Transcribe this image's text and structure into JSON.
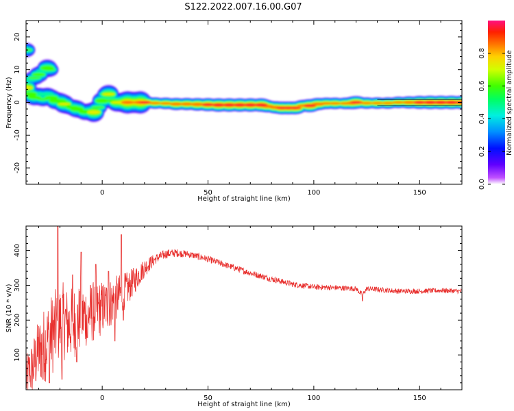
{
  "title": "S122.2022.007.16.00.G07",
  "chart_data": [
    {
      "type": "heatmap",
      "xlabel": "Height of straight line (km)",
      "ylabel": "Frequency (Hz)",
      "xlim": [
        -36,
        170
      ],
      "ylim": [
        -25,
        25
      ],
      "x_ticks": [
        0,
        50,
        100,
        150
      ],
      "y_ticks": [
        20,
        10,
        0,
        -10,
        -20
      ],
      "colorbar": {
        "label": "Normalized spectral amplitude",
        "range": [
          0,
          1
        ],
        "ticks": [
          0.0,
          0.2,
          0.4,
          0.6,
          0.8
        ]
      },
      "ridge": [
        {
          "x": -36,
          "y": 4.5,
          "a": 0.75
        },
        {
          "x": -34,
          "y": 2.5,
          "a": 0.65
        },
        {
          "x": -32,
          "y": 1.5,
          "a": 0.6
        },
        {
          "x": -30,
          "y": 2.5,
          "a": 0.5
        },
        {
          "x": -28,
          "y": 1.0,
          "a": 0.55
        },
        {
          "x": -26,
          "y": 2.5,
          "a": 0.5
        },
        {
          "x": -24,
          "y": 1.5,
          "a": 0.6
        },
        {
          "x": -22,
          "y": 0.5,
          "a": 0.65
        },
        {
          "x": -20,
          "y": 0.5,
          "a": 0.6
        },
        {
          "x": -18,
          "y": -0.5,
          "a": 0.7
        },
        {
          "x": -16,
          "y": -1.5,
          "a": 0.5
        },
        {
          "x": -14,
          "y": -1.5,
          "a": 0.6
        },
        {
          "x": -12,
          "y": -2.0,
          "a": 0.65
        },
        {
          "x": -10,
          "y": -2.5,
          "a": 0.55
        },
        {
          "x": -8,
          "y": -3.0,
          "a": 0.6
        },
        {
          "x": -6,
          "y": -2.5,
          "a": 0.55
        },
        {
          "x": -4,
          "y": -3.0,
          "a": 0.75
        },
        {
          "x": -2,
          "y": -1.5,
          "a": 0.55
        },
        {
          "x": 0,
          "y": 0.5,
          "a": 0.65
        },
        {
          "x": 2,
          "y": 2.5,
          "a": 0.55
        },
        {
          "x": 3,
          "y": 2.5,
          "a": 0.7
        },
        {
          "x": 5,
          "y": 0.5,
          "a": 0.6
        },
        {
          "x": 7,
          "y": 0.0,
          "a": 0.7
        },
        {
          "x": 10,
          "y": 0.0,
          "a": 0.75
        },
        {
          "x": 12,
          "y": 0.0,
          "a": 0.85
        },
        {
          "x": 15,
          "y": 0.0,
          "a": 0.8
        },
        {
          "x": 18,
          "y": 0.0,
          "a": 0.85
        },
        {
          "x": 20,
          "y": 0.0,
          "a": 0.9
        },
        {
          "x": 25,
          "y": -0.2,
          "a": 0.8
        },
        {
          "x": 30,
          "y": -0.3,
          "a": 0.8
        },
        {
          "x": 35,
          "y": -0.5,
          "a": 0.85
        },
        {
          "x": 40,
          "y": -0.5,
          "a": 0.85
        },
        {
          "x": 45,
          "y": -0.6,
          "a": 0.88
        },
        {
          "x": 50,
          "y": -0.7,
          "a": 0.92
        },
        {
          "x": 55,
          "y": -0.8,
          "a": 0.95
        },
        {
          "x": 60,
          "y": -0.8,
          "a": 0.95
        },
        {
          "x": 65,
          "y": -0.8,
          "a": 0.95
        },
        {
          "x": 70,
          "y": -0.8,
          "a": 0.95
        },
        {
          "x": 75,
          "y": -0.8,
          "a": 0.95
        },
        {
          "x": 78,
          "y": -1.2,
          "a": 0.85
        },
        {
          "x": 82,
          "y": -1.5,
          "a": 0.85
        },
        {
          "x": 85,
          "y": -1.7,
          "a": 0.9
        },
        {
          "x": 88,
          "y": -1.7,
          "a": 0.9
        },
        {
          "x": 91,
          "y": -1.7,
          "a": 0.9
        },
        {
          "x": 95,
          "y": -1.0,
          "a": 0.8
        },
        {
          "x": 98,
          "y": -1.0,
          "a": 0.92
        },
        {
          "x": 102,
          "y": -0.5,
          "a": 0.85
        },
        {
          "x": 106,
          "y": -0.3,
          "a": 0.8
        },
        {
          "x": 110,
          "y": -0.3,
          "a": 0.8
        },
        {
          "x": 115,
          "y": -0.3,
          "a": 0.8
        },
        {
          "x": 118,
          "y": -0.2,
          "a": 0.85
        },
        {
          "x": 120,
          "y": 0.0,
          "a": 0.9
        },
        {
          "x": 125,
          "y": -0.2,
          "a": 0.8
        },
        {
          "x": 130,
          "y": -0.2,
          "a": 0.8
        },
        {
          "x": 135,
          "y": -0.2,
          "a": 0.8
        },
        {
          "x": 140,
          "y": 0.0,
          "a": 0.8
        },
        {
          "x": 145,
          "y": 0.0,
          "a": 0.85
        },
        {
          "x": 150,
          "y": 0.0,
          "a": 0.92
        },
        {
          "x": 155,
          "y": 0.0,
          "a": 0.95
        },
        {
          "x": 160,
          "y": 0.0,
          "a": 0.95
        },
        {
          "x": 165,
          "y": 0.0,
          "a": 0.95
        },
        {
          "x": 170,
          "y": 0.0,
          "a": 0.95
        }
      ],
      "branch": [
        {
          "x": -36,
          "y": 16.0,
          "a": 0.55
        },
        {
          "x": -34,
          "y": 7.0,
          "a": 0.5
        },
        {
          "x": -32,
          "y": 7.5,
          "a": 0.55
        },
        {
          "x": -30,
          "y": 8.5,
          "a": 0.6
        },
        {
          "x": -28,
          "y": 9.5,
          "a": 0.5
        },
        {
          "x": -26,
          "y": 10.5,
          "a": 0.65
        },
        {
          "x": -25,
          "y": 10.0,
          "a": 0.55
        }
      ]
    },
    {
      "type": "line",
      "xlabel": "Height of straight line (km)",
      "ylabel": "SNR (10 * v/v)",
      "xlim": [
        -36,
        170
      ],
      "ylim": [
        0,
        470
      ],
      "x_ticks": [
        0,
        50,
        100,
        150
      ],
      "y_ticks": [
        100,
        200,
        300,
        400
      ],
      "color": "#e8302e",
      "envelope": {
        "x": [
          -36,
          -33,
          -30,
          -26,
          -22,
          -19,
          -16,
          -12,
          -8,
          -4,
          0,
          4,
          8,
          12,
          16,
          20,
          25,
          30,
          35,
          40,
          45,
          50,
          60,
          70,
          80,
          90,
          100,
          110,
          120,
          123,
          125,
          130,
          140,
          150,
          160,
          170
        ],
        "y": [
          30,
          60,
          110,
          140,
          175,
          200,
          185,
          200,
          215,
          225,
          235,
          250,
          270,
          290,
          320,
          350,
          375,
          390,
          393,
          390,
          383,
          375,
          355,
          335,
          318,
          303,
          295,
          293,
          290,
          272,
          290,
          288,
          283,
          283,
          285,
          283
        ]
      },
      "noise": {
        "x": [
          -36,
          -25,
          -10,
          5,
          15,
          25,
          40,
          70,
          100,
          170
        ],
        "y": [
          70,
          120,
          100,
          70,
          40,
          15,
          10,
          9,
          8,
          7
        ]
      },
      "spikes": [
        {
          "x": -21,
          "y": 470
        },
        {
          "x": -25,
          "y": 380
        },
        {
          "x": -19,
          "y": 375
        },
        {
          "x": -10,
          "y": 395
        },
        {
          "x": 9,
          "y": 445
        },
        {
          "x": -3,
          "y": 360
        },
        {
          "x": 6,
          "y": 380
        },
        {
          "x": 3,
          "y": 340
        },
        {
          "x": -14,
          "y": 330
        }
      ],
      "dips": [
        {
          "x": -34,
          "y": 40
        },
        {
          "x": -28,
          "y": 30
        },
        {
          "x": -25,
          "y": 20
        },
        {
          "x": -19,
          "y": 30
        },
        {
          "x": -12,
          "y": 80
        },
        {
          "x": -7,
          "y": 150
        },
        {
          "x": 6,
          "y": 140
        },
        {
          "x": 10,
          "y": 200
        },
        {
          "x": 123,
          "y": 255
        }
      ]
    }
  ]
}
